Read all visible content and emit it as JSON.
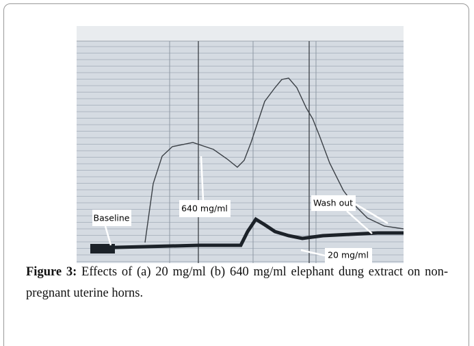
{
  "figure": {
    "annotations": [
      "Baseline",
      "640 mg/ml",
      "Wash out",
      "20 mg/ml"
    ],
    "caption": {
      "label": "Figure 3:",
      "text": "Effects of (a) 20 mg/ml (b) 640 mg/ml elephant dung extract on non-pregnant uterine horns."
    }
  }
}
